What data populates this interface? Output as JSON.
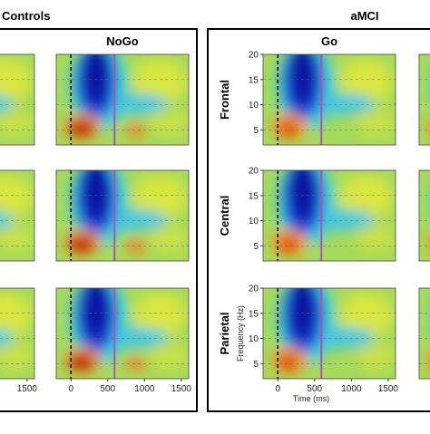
{
  "figure": {
    "groups": [
      {
        "title": "Controls",
        "condition": "NoGo"
      },
      {
        "title": "aMCI",
        "condition": "Go"
      }
    ],
    "rows": [
      "Frontal",
      "Central",
      "Parietal"
    ],
    "axes": {
      "xlim": [
        -200,
        1600
      ],
      "xticks": [
        0,
        500,
        1000,
        1500
      ],
      "ylim": [
        2,
        20
      ],
      "yticks": [
        5,
        10,
        15,
        20
      ],
      "xlabel": "Time (ms)",
      "ylabel": "Frequency (Hz)"
    }
  }
}
